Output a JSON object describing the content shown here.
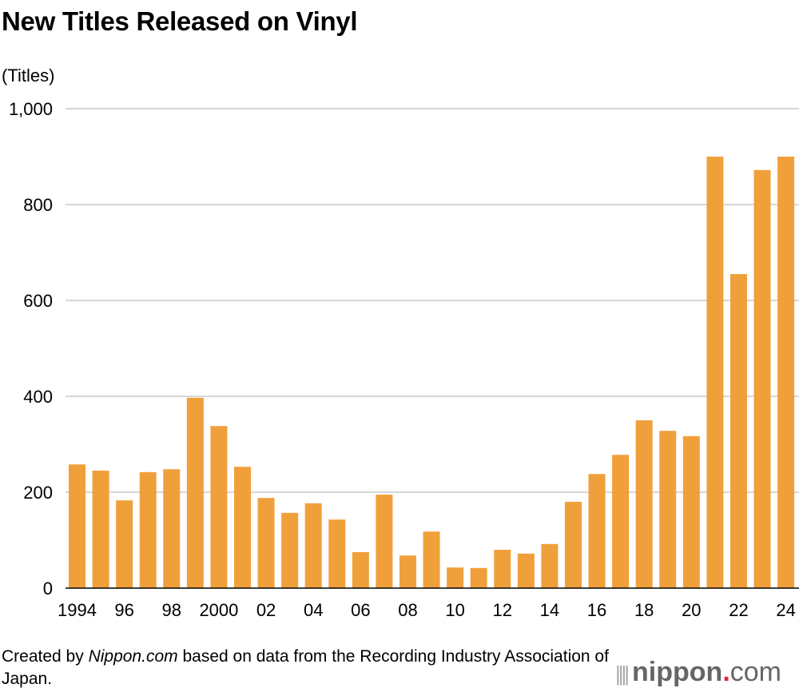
{
  "chart_data": {
    "type": "bar",
    "title": "New Titles Released on Vinyl",
    "ylabel": "(Titles)",
    "xlabel": "",
    "ylim": [
      0,
      1000
    ],
    "yticks": [
      0,
      200,
      400,
      600,
      800,
      1000
    ],
    "ytick_labels": [
      "0",
      "200",
      "400",
      "600",
      "800",
      "1,000"
    ],
    "grid": true,
    "categories": [
      "1994",
      "1995",
      "1996",
      "1997",
      "1998",
      "1999",
      "2000",
      "2001",
      "2002",
      "2003",
      "2004",
      "2005",
      "2006",
      "2007",
      "2008",
      "2009",
      "2010",
      "2011",
      "2012",
      "2013",
      "2014",
      "2015",
      "2016",
      "2017",
      "2018",
      "2019",
      "2020",
      "2021",
      "2022",
      "2023",
      "2024"
    ],
    "xtick_labels": [
      "1994",
      "",
      "96",
      "",
      "98",
      "",
      "2000",
      "",
      "02",
      "",
      "04",
      "",
      "06",
      "",
      "08",
      "",
      "10",
      "",
      "12",
      "",
      "14",
      "",
      "16",
      "",
      "18",
      "",
      "20",
      "",
      "22",
      "",
      "24"
    ],
    "values": [
      258,
      245,
      183,
      242,
      248,
      397,
      338,
      253,
      188,
      157,
      177,
      143,
      75,
      195,
      68,
      118,
      43,
      42,
      80,
      72,
      92,
      180,
      238,
      278,
      350,
      328,
      317,
      900,
      655,
      872,
      900
    ],
    "bar_color": "#f0a03a"
  },
  "footer": {
    "source_prefix": "Created by ",
    "source_brand": "Nippon.com",
    "source_suffix": " based on data from the Recording Industry Association of Japan.",
    "logo_text": "nippon.com"
  }
}
